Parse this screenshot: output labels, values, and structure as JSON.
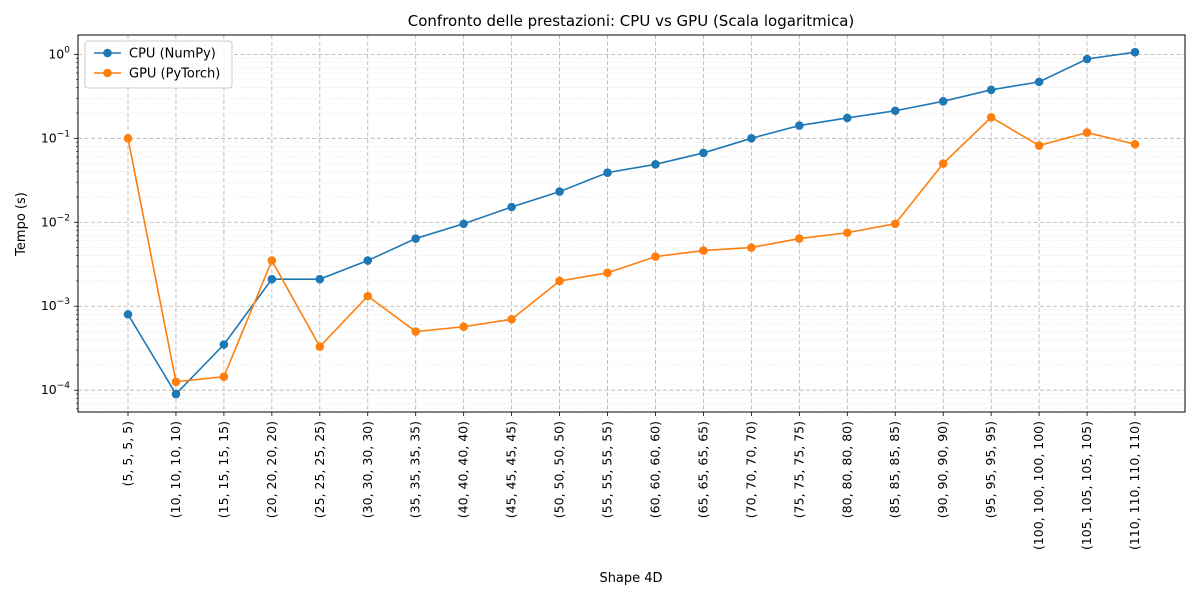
{
  "chart_data": {
    "type": "line",
    "title": "Confronto delle prestazioni: CPU vs GPU (Scala logaritmica)",
    "xlabel": "Shape 4D",
    "ylabel": "Tempo (s)",
    "yscale": "log",
    "ylim": [
      5.5e-05,
      1.7
    ],
    "grid": true,
    "legend_position": "top-left",
    "categories": [
      "(5, 5, 5, 5)",
      "(10, 10, 10, 10)",
      "(15, 15, 15, 15)",
      "(20, 20, 20, 20)",
      "(25, 25, 25, 25)",
      "(30, 30, 30, 30)",
      "(35, 35, 35, 35)",
      "(40, 40, 40, 40)",
      "(45, 45, 45, 45)",
      "(50, 50, 50, 50)",
      "(55, 55, 55, 55)",
      "(60, 60, 60, 60)",
      "(65, 65, 65, 65)",
      "(70, 70, 70, 70)",
      "(75, 75, 75, 75)",
      "(80, 80, 80, 80)",
      "(85, 85, 85, 85)",
      "(90, 90, 90, 90)",
      "(95, 95, 95, 95)",
      "(100, 100, 100, 100)",
      "(105, 105, 105, 105)",
      "(110, 110, 110, 110)"
    ],
    "y_ticks": [
      {
        "value": 0.0001,
        "mantissa": "10",
        "exponent": "−4"
      },
      {
        "value": 0.001,
        "mantissa": "10",
        "exponent": "−3"
      },
      {
        "value": 0.01,
        "mantissa": "10",
        "exponent": "−2"
      },
      {
        "value": 0.1,
        "mantissa": "10",
        "exponent": "−1"
      },
      {
        "value": 1,
        "mantissa": "10",
        "exponent": "0"
      }
    ],
    "series": [
      {
        "name": "CPU (NumPy)",
        "color": "#1f77b4",
        "values": [
          0.0008,
          9e-05,
          0.00035,
          0.0021,
          0.0021,
          0.0035,
          0.0064,
          0.0096,
          0.0152,
          0.0232,
          0.039,
          0.049,
          0.067,
          0.1,
          0.142,
          0.175,
          0.213,
          0.276,
          0.378,
          0.47,
          0.88,
          1.06
        ]
      },
      {
        "name": "GPU (PyTorch)",
        "color": "#ff7f0e",
        "values": [
          0.1,
          0.000126,
          0.000145,
          0.0035,
          0.00033,
          0.00132,
          0.0005,
          0.00057,
          0.0007,
          0.002,
          0.0025,
          0.0039,
          0.0046,
          0.005,
          0.0064,
          0.0075,
          0.0096,
          0.05,
          0.178,
          0.082,
          0.117,
          0.085
        ]
      }
    ]
  }
}
